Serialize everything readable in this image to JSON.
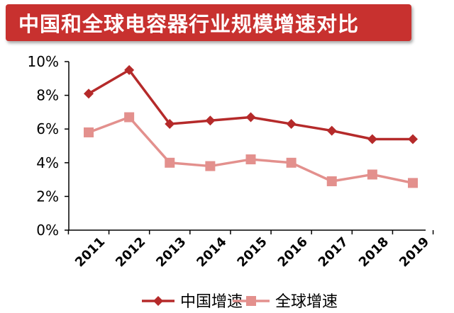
{
  "title": "中国和全球电容器行业规模增速对比",
  "colors": {
    "title_bg": "#c8312f",
    "china": "#b52a2a",
    "global": "#e3908d",
    "axis": "#000000"
  },
  "chart_data": {
    "type": "line",
    "title": "中国和全球电容器行业规模增速对比",
    "x": [
      "2011",
      "2012",
      "2013",
      "2014",
      "2015",
      "2016",
      "2017",
      "2018",
      "2019"
    ],
    "series": [
      {
        "name": "中国增速",
        "values": [
          8.1,
          9.5,
          6.3,
          6.5,
          6.7,
          6.3,
          5.9,
          5.4,
          5.4
        ],
        "marker": "diamond"
      },
      {
        "name": "全球增速",
        "values": [
          5.8,
          6.7,
          4.0,
          3.8,
          4.2,
          4.0,
          2.9,
          3.3,
          2.8
        ],
        "marker": "square"
      }
    ],
    "yticks": [
      "0%",
      "2%",
      "4%",
      "6%",
      "8%",
      "10%"
    ],
    "ylim": [
      0,
      10
    ],
    "xlabel": "",
    "ylabel": "",
    "grid": false,
    "legend_position": "bottom"
  }
}
